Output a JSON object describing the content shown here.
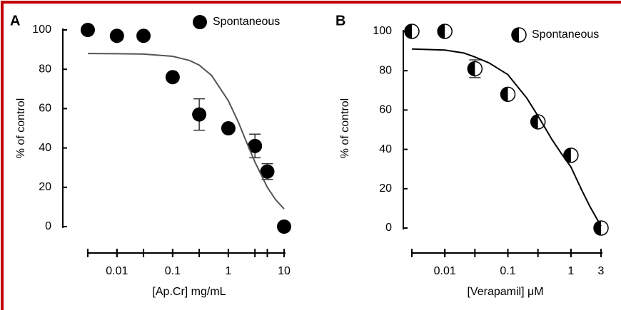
{
  "chart_data": [
    {
      "type": "scatter",
      "panel_label": "A",
      "x_label": "[Ap.Cr] mg/mL",
      "y_label": "% of control",
      "xscale": "log",
      "xlim": [
        0.003,
        10
      ],
      "ylim": [
        0,
        100
      ],
      "xticks": [
        0.01,
        0.1,
        1,
        10
      ],
      "yticks": [
        0,
        20,
        40,
        60,
        80,
        100
      ],
      "legend": "top-right",
      "series": [
        {
          "name": "Spontaneous",
          "marker": "filled",
          "color": "#000000",
          "x": [
            0.003,
            0.01,
            0.03,
            0.1,
            0.3,
            1,
            3,
            5,
            10
          ],
          "values": [
            100,
            97,
            97,
            76,
            57,
            50,
            41,
            28,
            0
          ],
          "errors": [
            null,
            null,
            null,
            null,
            8,
            null,
            6,
            4,
            null
          ]
        },
        {
          "type": "line",
          "color": "#555555",
          "x": [
            0.003,
            0.01,
            0.03,
            0.1,
            0.2,
            0.3,
            0.5,
            1,
            1.5,
            2,
            3,
            5,
            7,
            10
          ],
          "values": [
            88,
            87.9,
            87.7,
            86.6,
            84.5,
            82.1,
            76.9,
            64,
            53.3,
            44.7,
            32.8,
            20,
            13.8,
            9
          ]
        }
      ]
    },
    {
      "type": "scatter",
      "panel_label": "B",
      "x_label": "[Verapamil] μM",
      "y_label": "% of control",
      "xscale": "log",
      "xlim": [
        0.003,
        3
      ],
      "ylim": [
        0,
        100
      ],
      "xticks": [
        0.01,
        0.1,
        1,
        3
      ],
      "yticks": [
        0,
        20,
        40,
        60,
        80,
        100
      ],
      "legend": "top-right",
      "series": [
        {
          "name": "Spontaneous",
          "marker": "half",
          "color": "#000000",
          "x": [
            0.003,
            0.01,
            0.03,
            0.1,
            0.3,
            1,
            3
          ],
          "values": [
            100,
            100,
            81,
            68,
            54,
            37,
            0
          ],
          "errors": [
            null,
            null,
            4.5,
            null,
            null,
            null,
            null
          ]
        },
        {
          "type": "line",
          "color": "#000000",
          "x": [
            0.003,
            0.01,
            0.02,
            0.03,
            0.05,
            0.1,
            0.2,
            0.3,
            0.5,
            0.7,
            1,
            1.5,
            2,
            3
          ],
          "values": [
            91,
            90.5,
            89,
            87,
            84,
            78,
            66,
            57,
            45,
            38,
            31,
            19,
            11,
            1
          ]
        }
      ]
    }
  ]
}
